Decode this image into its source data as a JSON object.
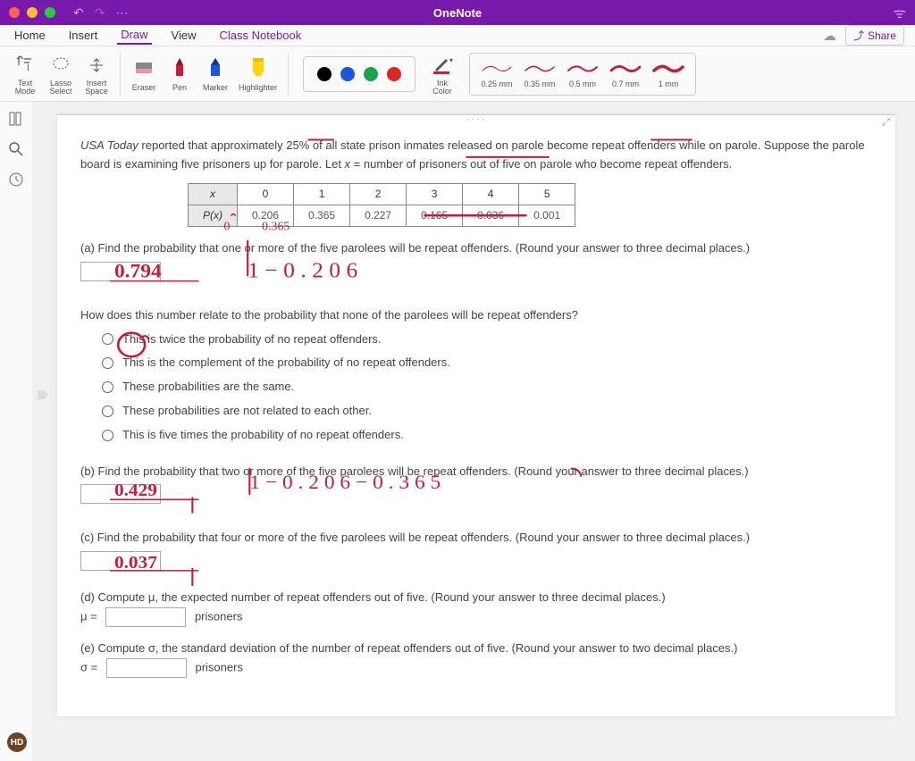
{
  "app": {
    "title": "OneNote"
  },
  "menubar": {
    "items": [
      "Home",
      "Insert",
      "Draw",
      "View",
      "Class Notebook"
    ],
    "active_index": 2,
    "share_label": "Share"
  },
  "toolbar": {
    "tools": [
      {
        "label": "Text\nMode",
        "name": "text-mode"
      },
      {
        "label": "Lasso\nSelect",
        "name": "lasso-select"
      },
      {
        "label": "Insert\nSpace",
        "name": "insert-space"
      }
    ],
    "pen_tools": [
      {
        "label": "Eraser",
        "name": "eraser"
      },
      {
        "label": "Pen",
        "name": "pen"
      },
      {
        "label": "Marker",
        "name": "marker"
      },
      {
        "label": "Highlighter",
        "name": "highlighter"
      }
    ],
    "color_dots": [
      "#000000",
      "#1a56db",
      "#16a34a",
      "#dc2626"
    ],
    "ink_color_label": "Ink\nColor",
    "strokes": [
      {
        "label": "0.25 mm",
        "w": 1
      },
      {
        "label": "0.35 mm",
        "w": 1.5
      },
      {
        "label": "0.5 mm",
        "w": 2
      },
      {
        "label": "0.7 mm",
        "w": 2.8
      },
      {
        "label": "1 mm",
        "w": 3.5
      }
    ],
    "stroke_color": "#c41e3a"
  },
  "content": {
    "intro_html": "<i>USA Today</i> reported that approximately 25% of all state prison inmates released on parole become repeat offenders while on parole. Suppose the parole board is examining five prisoners up for parole. Let <i>x</i> = number of prisoners out of five on parole who become repeat offenders.",
    "table": {
      "header": [
        "x",
        "0",
        "1",
        "2",
        "3",
        "4",
        "5"
      ],
      "px_label": "P(x)",
      "px": [
        "0.206",
        "0.365",
        "0.227",
        "0.165",
        "0.036",
        "0.001"
      ]
    },
    "q_a": "(a) Find the probability that one or more of the five parolees will be repeat offenders. (Round your answer to three decimal places.)",
    "q_relate": "How does this number relate to the probability that none of the parolees will be repeat offenders?",
    "options": [
      "This is twice the probability of no repeat offenders.",
      "This is the complement of the probability of no repeat offenders.",
      "These probabilities are the same.",
      "These probabilities are not related to each other.",
      "This is five times the probability of no repeat offenders."
    ],
    "q_b": "(b) Find the probability that two or more of the five parolees will be repeat offenders. (Round your answer to three decimal places.)",
    "q_c": "(c) Find the probability that four or more of the five parolees will be repeat offenders. (Round your answer to three decimal places.)",
    "q_d": "(d) Compute μ, the expected number of repeat offenders out of five. (Round your answer to three decimal places.)",
    "q_d_suffix": "μ =",
    "q_d_unit": "prisoners",
    "q_e": "(e) Compute σ, the standard deviation of the number of repeat offenders out of five. (Round your answer to two decimal places.)",
    "q_e_suffix": "σ =",
    "q_e_unit": "prisoners"
  },
  "handwriting": {
    "color": "#c41e3a",
    "ans_a": "0.794",
    "work_a": "1 − 0.206",
    "ans_b": "0.429",
    "work_b": "1 − 0.206 − 0.365",
    "ans_c": "0.037",
    "table_underline_45": true,
    "table_work": "0     0.365",
    "underlines": [
      "25%",
      "parole",
      "up for parole"
    ]
  },
  "avatar": "HD"
}
